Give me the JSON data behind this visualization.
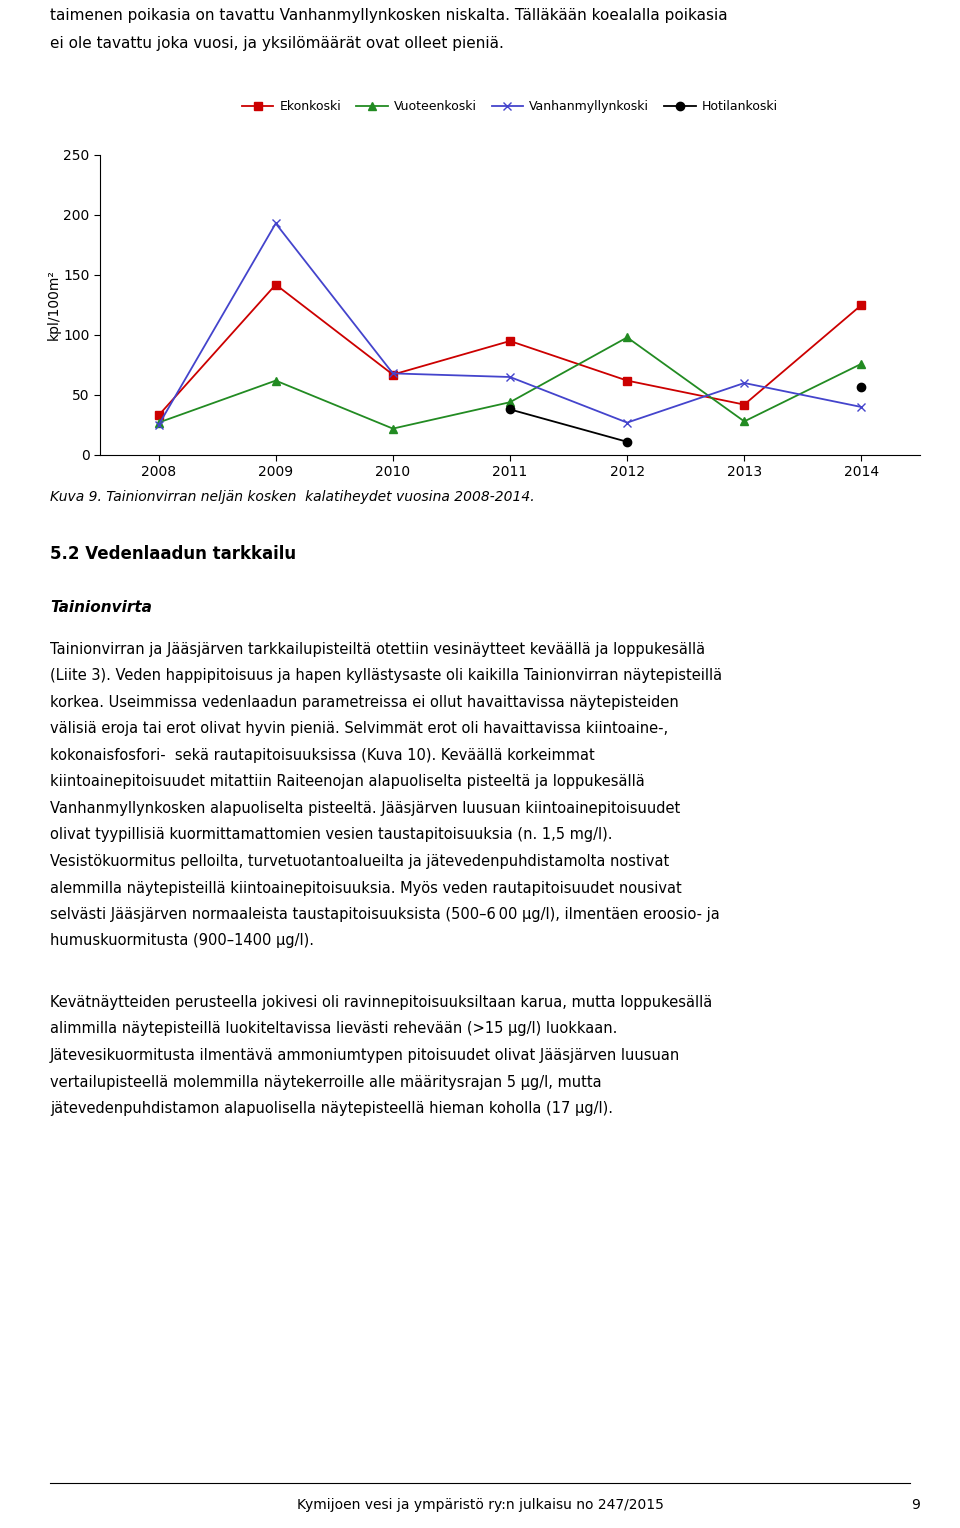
{
  "years": [
    2008,
    2009,
    2010,
    2011,
    2012,
    2013,
    2014
  ],
  "ekonkoski": [
    33,
    142,
    67,
    95,
    62,
    42,
    125
  ],
  "vuoteenkoski": [
    27,
    62,
    22,
    44,
    98,
    28,
    76
  ],
  "vanhanmyllynkoski": [
    25,
    193,
    68,
    65,
    27,
    60,
    40
  ],
  "hotilankoski": [
    null,
    null,
    null,
    38,
    11,
    null,
    57
  ],
  "ekonkoski_color": "#cc0000",
  "vuoteenkoski_color": "#228B22",
  "vanhanmyllynkoski_color": "#4444cc",
  "hotilankoski_color": "#000000",
  "ylabel": "kpl/100m²",
  "ylim": [
    0,
    250
  ],
  "yticks": [
    0,
    50,
    100,
    150,
    200,
    250
  ],
  "xlim": [
    2007.5,
    2014.5
  ],
  "legend_labels": [
    "Ekonkoski",
    "Vuoteenkoski",
    "Vanhanmyllynkoski",
    "Hotilankoski"
  ],
  "caption": "Kuva 9. Tainionvirran neljän kosken  kalatiheydet vuosina 2008-2014.",
  "section_heading": "5.2 Vedenlaadun tarkkailu",
  "subsection_heading": "Tainionvirta",
  "body_text_1_lines": [
    "Tainionvirran ja Jääsjärven tarkkailupisteiltä otettiin vesinäytteet keväällä ja loppukesällä",
    "(Liite 3). Veden happipitoisuus ja hapen kyllästysaste oli kaikilla Tainionvirran näytepisteillä",
    "korkea. Useimmissa vedenlaadun parametreissa ei ollut havaittavissa näytepisteiden",
    "välisiä eroja tai erot olivat hyvin pieniä. Selvimmät erot oli havaittavissa kiintoaine-,",
    "kokonaisfosfori-  sekä rautapitoisuuksissa (Kuva 10). Keväällä korkeimmat",
    "kiintoainepitoisuudet mitattiin Raiteenojan alapuoliselta pisteeltä ja loppukesällä",
    "Vanhanmyllynkosken alapuoliselta pisteeltä. Jääsjärven luusuan kiintoainepitoisuudet",
    "olivat tyypillisiä kuormittamattomien vesien taustapitoisuuksia (n. 1,5 mg/l).",
    "Vesistökuormitus pelloilta, turvetuotantoalueilta ja jätevedenpuhdistamolta nostivat",
    "alemmilla näytepisteillä kiintoainepitoisuuksia. Myös veden rautapitoisuudet nousivat",
    "selvästi Jääsjärven normaaleista taustapitoisuuksista (500–6 00 μg/l), ilmentäen eroosio- ja",
    "humuskuormitusta (900–1400 μg/l)."
  ],
  "body_text_2_lines": [
    "Kevätnäytteiden perusteella jokivesi oli ravinnepitoisuuksiltaan karua, mutta loppukesällä",
    "alimmilla näytepisteillä luokiteltavissa lievästi rehevään (>15 μg/l) luokkaan.",
    "Jätevesikuormitusta ilmentävä ammoniumtypen pitoisuudet olivat Jääsjärven luusuan",
    "vertailupisteellä molemmilla näytekerroille alle määritysrajan 5 μg/l, mutta",
    "jätevedenpuhdistamon alapuolisella näytepisteellä hieman koholla (17 μg/l)."
  ],
  "footer_text": "Kymijoen vesi ja ympäristö ry:n julkaisu no 247/2015",
  "footer_page": "9",
  "top_text_line1": "taimenen poikasia on tavattu Vanhanmyllynkosken niskalta. Tälläkään koealalla poikasia",
  "top_text_line2": "ei ole tavattu joka vuosi, ja yksilömäärät ovat olleet pieniä."
}
